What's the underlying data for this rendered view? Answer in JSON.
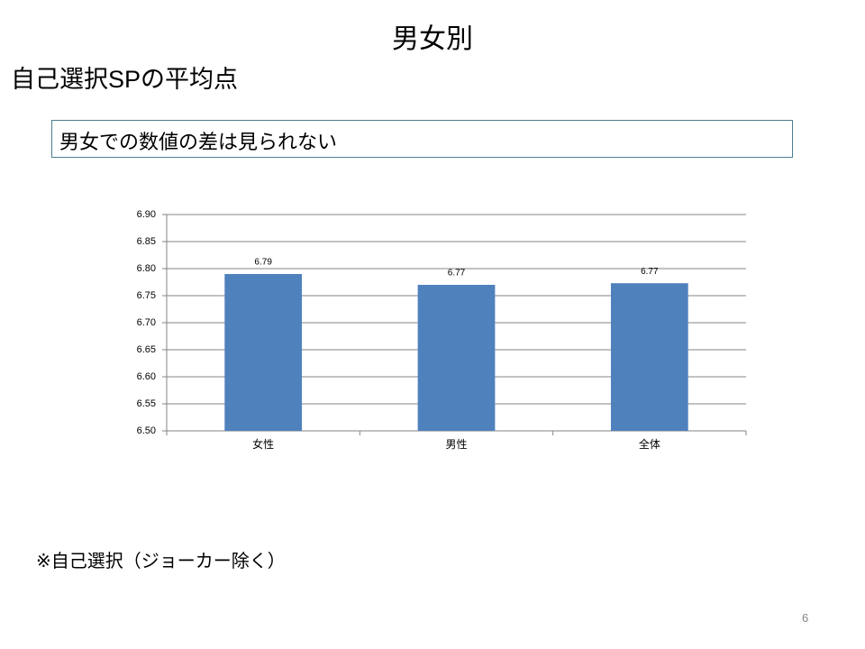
{
  "title": "男女別",
  "heading": "自己選択SPの平均点",
  "callout": "男女での数値の差は見られない",
  "note": "※自己選択（ジョーカー除く）",
  "page_number": "6",
  "chart_data": {
    "type": "bar",
    "categories": [
      "女性",
      "男性",
      "全体"
    ],
    "values": [
      6.79,
      6.77,
      6.773
    ],
    "value_labels": [
      "6.79",
      "6.77",
      "6.77"
    ],
    "color": "#4f81bd",
    "ylim": [
      6.5,
      6.9
    ],
    "yticks": [
      {
        "value": 6.5,
        "label": "6.50"
      },
      6.55,
      {
        "value": 6.6,
        "label": "6.60"
      },
      6.65,
      {
        "value": 6.7,
        "label": "6.70"
      },
      6.75,
      {
        "value": 6.8,
        "label": "6.80"
      },
      6.85,
      {
        "value": 6.9,
        "label": "6.90"
      }
    ],
    "grid": true
  }
}
